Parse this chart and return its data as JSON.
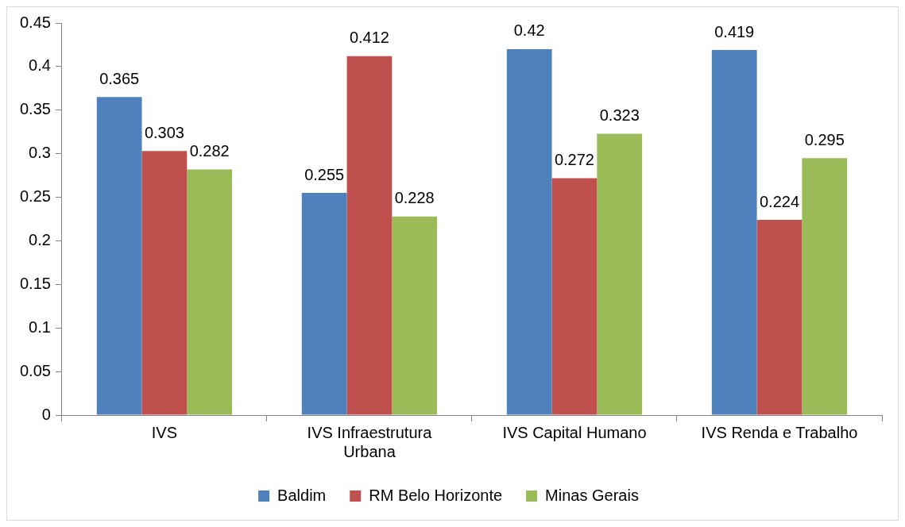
{
  "chart_data": {
    "type": "bar",
    "categories": [
      "IVS",
      "IVS Infraestrutura Urbana",
      "IVS Capital Humano",
      "IVS Renda e Trabalho"
    ],
    "series": [
      {
        "name": "Baldim",
        "color": "#4f81bd",
        "values": [
          0.365,
          0.255,
          0.42,
          0.419
        ]
      },
      {
        "name": "RM Belo Horizonte",
        "color": "#c0504d",
        "values": [
          0.303,
          0.412,
          0.272,
          0.224
        ]
      },
      {
        "name": "Minas Gerais",
        "color": "#9bbb59",
        "values": [
          0.282,
          0.228,
          0.323,
          0.295
        ]
      }
    ],
    "ylim": [
      0,
      0.45
    ],
    "yticks": [
      0,
      0.05,
      0.1,
      0.15,
      0.2,
      0.25,
      0.3,
      0.35,
      0.4,
      0.45
    ],
    "grid": false,
    "legend": "bottom",
    "data_labels": true
  }
}
